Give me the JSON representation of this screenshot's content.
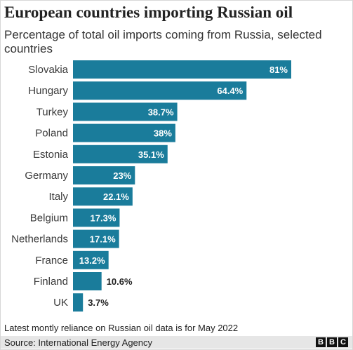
{
  "header": {
    "title": "European countries importing Russian oil",
    "subtitle": "Percentage of total oil imports coming from Russia, selected countries"
  },
  "chart_data": {
    "type": "bar",
    "orientation": "horizontal",
    "title": "European countries importing Russian oil",
    "subtitle": "Percentage of total oil imports coming from Russia, selected countries",
    "categories": [
      "Slovakia",
      "Hungary",
      "Turkey",
      "Poland",
      "Estonia",
      "Germany",
      "Italy",
      "Belgium",
      "Netherlands",
      "France",
      "Finland",
      "UK"
    ],
    "values": [
      81,
      64.4,
      38.7,
      38,
      35.1,
      23,
      22.1,
      17.3,
      17.1,
      13.2,
      10.6,
      3.7
    ],
    "value_labels": [
      "81%",
      "64.4%",
      "38.7%",
      "38%",
      "35.1%",
      "23%",
      "22.1%",
      "17.3%",
      "17.1%",
      "13.2%",
      "10.6%",
      "3.7%"
    ],
    "xlim": [
      0,
      81
    ],
    "grid": false,
    "legend": "none",
    "bar_color": "#1a7c9b"
  },
  "footer": {
    "note": "Latest montly reliance on Russian oil data is for May 2022",
    "source": "Source: International Energy Agency",
    "logo_letters": [
      "B",
      "B",
      "C"
    ]
  }
}
